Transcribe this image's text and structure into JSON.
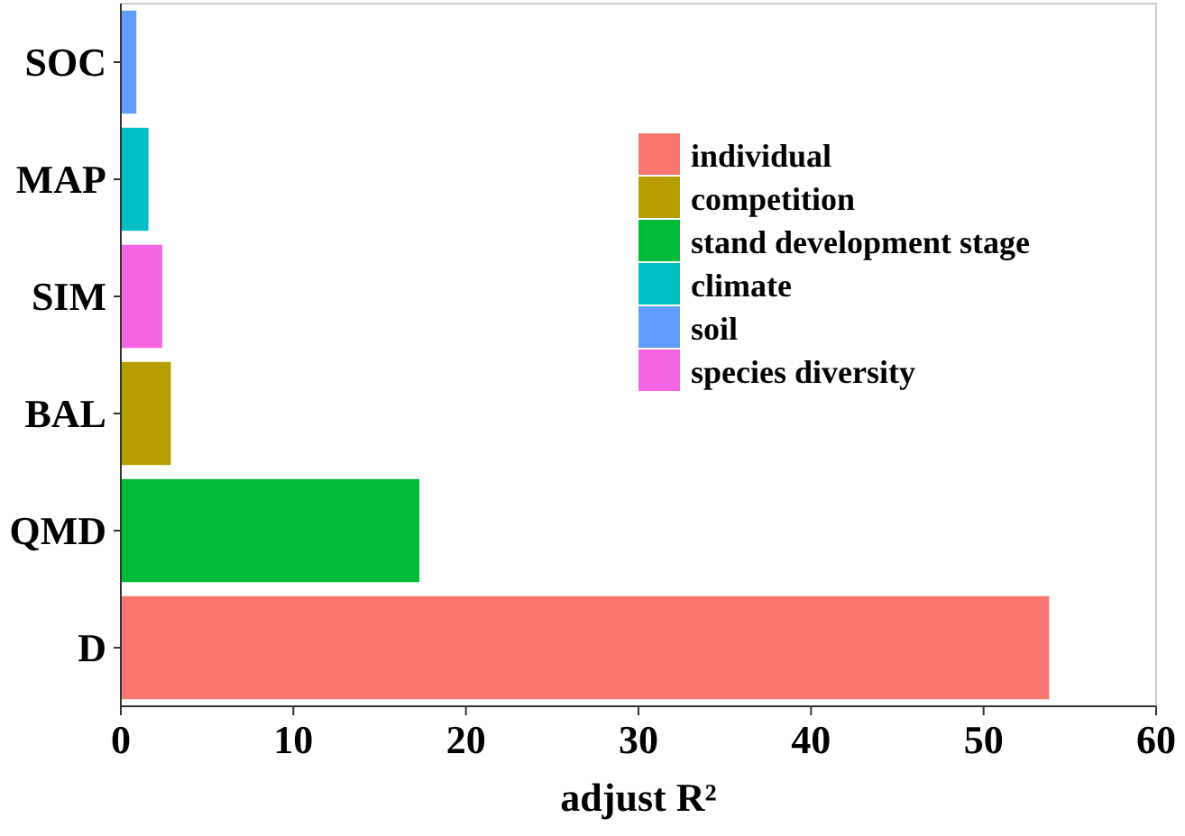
{
  "chart_data": {
    "type": "bar",
    "orientation": "horizontal",
    "xlabel": "adjust R²",
    "categories": [
      "SOC",
      "MAP",
      "SIM",
      "BAL",
      "QMD",
      "D"
    ],
    "series": [
      {
        "name": "individual",
        "color": "#f8766d",
        "values": [
          null,
          null,
          null,
          null,
          null,
          53.8
        ]
      },
      {
        "name": "competition",
        "color": "#b79f00",
        "values": [
          null,
          null,
          null,
          2.9,
          null,
          null
        ]
      },
      {
        "name": "stand development stage",
        "color": "#00ba38",
        "values": [
          null,
          null,
          null,
          null,
          17.3,
          null
        ]
      },
      {
        "name": "climate",
        "color": "#00bfc4",
        "values": [
          null,
          1.6,
          null,
          null,
          null,
          null
        ]
      },
      {
        "name": "soil",
        "color": "#619cff",
        "values": [
          0.9,
          null,
          null,
          null,
          null,
          null
        ]
      },
      {
        "name": "species diversity",
        "color": "#f564e3",
        "values": [
          null,
          null,
          2.4,
          null,
          null,
          null
        ]
      }
    ],
    "xlim": [
      0,
      60
    ],
    "xticks": [
      0,
      10,
      20,
      30,
      40,
      50,
      60
    ],
    "grid": false,
    "legend": "top right"
  }
}
